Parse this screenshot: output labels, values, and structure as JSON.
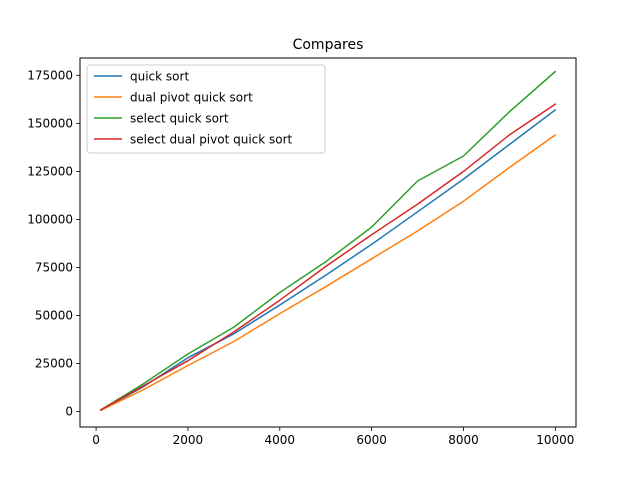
{
  "chart_data": {
    "type": "line",
    "title": "Compares",
    "xlabel": "",
    "ylabel": "",
    "xlim": [
      -350,
      10450
    ],
    "ylim": [
      -8000,
      184000
    ],
    "xticks": [
      0,
      2000,
      4000,
      6000,
      8000,
      10000
    ],
    "xtick_labels": [
      "0",
      "2000",
      "4000",
      "6000",
      "8000",
      "10000"
    ],
    "yticks": [
      0,
      25000,
      50000,
      75000,
      100000,
      125000,
      150000,
      175000
    ],
    "ytick_labels": [
      "0",
      "25000",
      "50000",
      "75000",
      "100000",
      "125000",
      "150000",
      "175000"
    ],
    "grid": false,
    "legend_position": "top-left",
    "x": [
      100,
      1000,
      2000,
      3000,
      4000,
      5000,
      6000,
      7000,
      8000,
      9000,
      10000
    ],
    "series": [
      {
        "name": "quick sort",
        "color": "#1f77b4",
        "values": [
          800,
          12500,
          28000,
          40500,
          55500,
          71000,
          87000,
          104000,
          121000,
          139000,
          157000
        ]
      },
      {
        "name": "dual pivot quick sort",
        "color": "#ff7f0e",
        "values": [
          700,
          11000,
          24000,
          36500,
          51000,
          65000,
          79500,
          94000,
          109500,
          127000,
          144000
        ]
      },
      {
        "name": "select quick sort",
        "color": "#2ca02c",
        "values": [
          900,
          14000,
          30000,
          44000,
          62000,
          78000,
          96000,
          120000,
          133000,
          156000,
          177000
        ]
      },
      {
        "name": "select dual pivot quick sort",
        "color": "#d62728",
        "values": [
          850,
          13000,
          26500,
          41500,
          58000,
          75500,
          92000,
          108000,
          125000,
          144000,
          160000
        ]
      }
    ]
  }
}
